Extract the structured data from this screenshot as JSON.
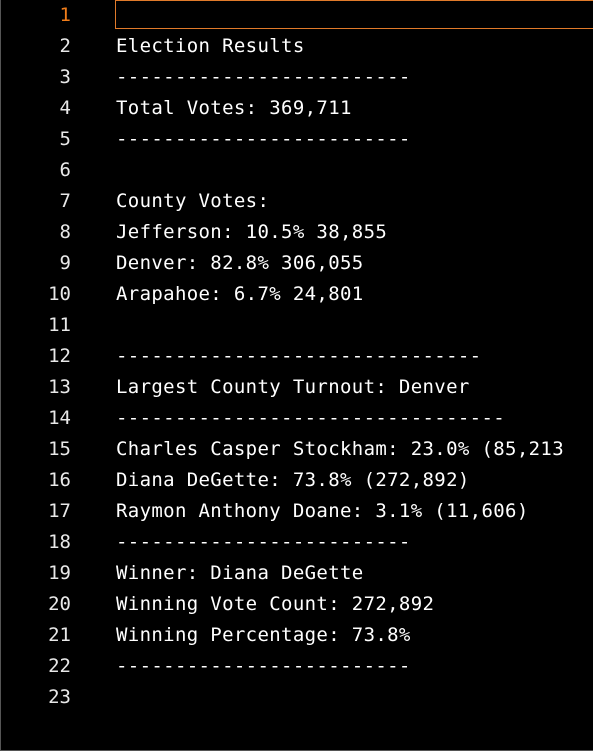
{
  "editor": {
    "active_line": 1,
    "lines": [
      {
        "number": "1",
        "text": ""
      },
      {
        "number": "2",
        "text": "Election Results"
      },
      {
        "number": "3",
        "text": "-------------------------"
      },
      {
        "number": "4",
        "text": "Total Votes: 369,711"
      },
      {
        "number": "5",
        "text": "-------------------------"
      },
      {
        "number": "6",
        "text": ""
      },
      {
        "number": "7",
        "text": "County Votes:"
      },
      {
        "number": "8",
        "text": "Jefferson: 10.5% 38,855"
      },
      {
        "number": "9",
        "text": "Denver: 82.8% 306,055"
      },
      {
        "number": "10",
        "text": "Arapahoe: 6.7% 24,801"
      },
      {
        "number": "11",
        "text": ""
      },
      {
        "number": "12",
        "text": "-------------------------------"
      },
      {
        "number": "13",
        "text": "Largest County Turnout: Denver"
      },
      {
        "number": "14",
        "text": "---------------------------------"
      },
      {
        "number": "15",
        "text": "Charles Casper Stockham: 23.0% (85,213"
      },
      {
        "number": "16",
        "text": "Diana DeGette: 73.8% (272,892)"
      },
      {
        "number": "17",
        "text": "Raymon Anthony Doane: 3.1% (11,606)"
      },
      {
        "number": "18",
        "text": "-------------------------"
      },
      {
        "number": "19",
        "text": "Winner: Diana DeGette"
      },
      {
        "number": "20",
        "text": "Winning Vote Count: 272,892"
      },
      {
        "number": "21",
        "text": "Winning Percentage: 73.8%"
      },
      {
        "number": "22",
        "text": "-------------------------"
      },
      {
        "number": "23",
        "text": ""
      }
    ]
  },
  "colors": {
    "background": "#000000",
    "text": "#ffffff",
    "active_line_number": "#f07d1a",
    "current_line_border": "#e07a2a"
  }
}
